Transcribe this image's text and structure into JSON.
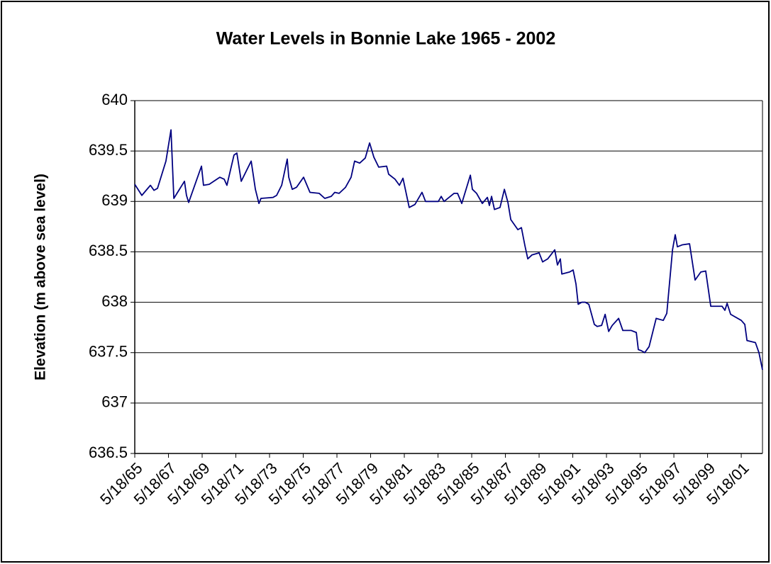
{
  "chart_data": {
    "type": "line",
    "title": "Water Levels in Bonnie Lake 1965 - 2002",
    "ylabel": "Elevation (m above sea level)",
    "color": "#000080",
    "grid": true,
    "ylim": [
      636.5,
      640
    ],
    "yticks": [
      {
        "value": 636.5,
        "label": "636.5"
      },
      637,
      {
        "value": 637.5,
        "label": "637.5"
      },
      638,
      {
        "value": 638.5,
        "label": "638.5"
      },
      639,
      {
        "value": 639.5,
        "label": "639.5"
      },
      640
    ],
    "xlim": [
      1965.38,
      2002.64
    ],
    "xticks": [
      {
        "value": 1965.38,
        "label": "5/18/65"
      },
      {
        "value": 1967.38,
        "label": "5/18/67"
      },
      {
        "value": 1969.38,
        "label": "5/18/69"
      },
      {
        "value": 1971.38,
        "label": "5/18/71"
      },
      {
        "value": 1973.38,
        "label": "5/18/73"
      },
      {
        "value": 1975.38,
        "label": "5/18/75"
      },
      {
        "value": 1977.38,
        "label": "5/18/77"
      },
      {
        "value": 1979.38,
        "label": "5/18/79"
      },
      {
        "value": 1981.38,
        "label": "5/18/81"
      },
      {
        "value": 1983.38,
        "label": "5/18/83"
      },
      {
        "value": 1985.38,
        "label": "5/18/85"
      },
      {
        "value": 1987.38,
        "label": "5/18/87"
      },
      {
        "value": 1989.38,
        "label": "5/18/89"
      },
      {
        "value": 1991.38,
        "label": "5/18/91"
      },
      {
        "value": 1993.38,
        "label": "5/18/93"
      },
      {
        "value": 1995.38,
        "label": "5/18/95"
      },
      {
        "value": 1997.38,
        "label": "5/18/97"
      },
      {
        "value": 1999.38,
        "label": "5/18/99"
      },
      {
        "value": 2001.38,
        "label": "5/18/01"
      }
    ],
    "x": [
      1965.38,
      1965.8,
      1966.31,
      1966.52,
      1966.73,
      1967.23,
      1967.53,
      1967.7,
      1968.33,
      1968.45,
      1968.58,
      1969.34,
      1969.46,
      1969.8,
      1970.43,
      1970.69,
      1970.85,
      1971.27,
      1971.44,
      1971.7,
      1972.29,
      1972.54,
      1972.75,
      1972.87,
      1973.59,
      1973.8,
      1974.1,
      1974.43,
      1974.52,
      1974.73,
      1974.98,
      1975.4,
      1975.78,
      1976.33,
      1976.66,
      1977.04,
      1977.25,
      1977.51,
      1977.89,
      1978.22,
      1978.43,
      1978.73,
      1979.06,
      1979.32,
      1979.57,
      1979.86,
      1980.33,
      1980.45,
      1980.83,
      1981.09,
      1981.3,
      1981.67,
      1982.01,
      1982.43,
      1982.64,
      1983.4,
      1983.57,
      1983.74,
      1984.33,
      1984.54,
      1984.79,
      1985.3,
      1985.42,
      1985.67,
      1986.01,
      1986.31,
      1986.43,
      1986.56,
      1986.73,
      1987.06,
      1987.32,
      1987.53,
      1987.7,
      1988.12,
      1988.33,
      1988.54,
      1988.71,
      1988.96,
      1989.38,
      1989.59,
      1989.89,
      1990.31,
      1990.47,
      1990.64,
      1990.73,
      1991.19,
      1991.4,
      1991.57,
      1991.7,
      1991.91,
      1992.12,
      1992.33,
      1992.66,
      1992.83,
      1993.09,
      1993.3,
      1993.51,
      1993.72,
      1994.1,
      1994.35,
      1994.85,
      1995.15,
      1995.27,
      1995.44,
      1995.65,
      1995.91,
      1996.33,
      1996.75,
      1996.96,
      1997.3,
      1997.46,
      1997.59,
      1997.89,
      1998.31,
      1998.64,
      1998.98,
      1999.27,
      1999.57,
      2000.24,
      2000.41,
      2000.54,
      2000.75,
      2001.38,
      2001.59,
      2001.72,
      2002.22,
      2002.43,
      2002.64
    ],
    "values": [
      639.17,
      639.06,
      639.16,
      639.11,
      639.13,
      639.4,
      639.71,
      639.03,
      639.2,
      639.06,
      638.99,
      639.35,
      639.16,
      639.17,
      639.24,
      639.22,
      639.16,
      639.46,
      639.48,
      639.2,
      639.4,
      639.12,
      638.98,
      639.03,
      639.04,
      639.06,
      639.16,
      639.42,
      639.24,
      639.12,
      639.14,
      639.24,
      639.09,
      639.08,
      639.03,
      639.05,
      639.09,
      639.08,
      639.14,
      639.24,
      639.4,
      639.38,
      639.43,
      639.58,
      639.44,
      639.34,
      639.35,
      639.27,
      639.22,
      639.16,
      639.23,
      638.94,
      638.97,
      639.09,
      639.0,
      639.0,
      639.05,
      639.0,
      639.08,
      639.08,
      638.98,
      639.26,
      639.12,
      639.08,
      638.98,
      639.04,
      638.96,
      639.05,
      638.92,
      638.94,
      639.12,
      638.99,
      638.82,
      638.72,
      638.74,
      638.56,
      638.43,
      638.47,
      638.49,
      638.4,
      638.43,
      638.52,
      638.37,
      638.43,
      638.28,
      638.3,
      638.32,
      638.18,
      637.98,
      638.0,
      638.0,
      637.98,
      637.78,
      637.76,
      637.77,
      637.88,
      637.71,
      637.77,
      637.84,
      637.72,
      637.72,
      637.7,
      637.53,
      637.52,
      637.5,
      637.56,
      637.84,
      637.82,
      637.89,
      638.52,
      638.67,
      638.55,
      638.57,
      638.58,
      638.22,
      638.3,
      638.31,
      637.96,
      637.96,
      637.92,
      637.99,
      637.88,
      637.82,
      637.78,
      637.62,
      637.6,
      637.5,
      637.33
    ]
  }
}
